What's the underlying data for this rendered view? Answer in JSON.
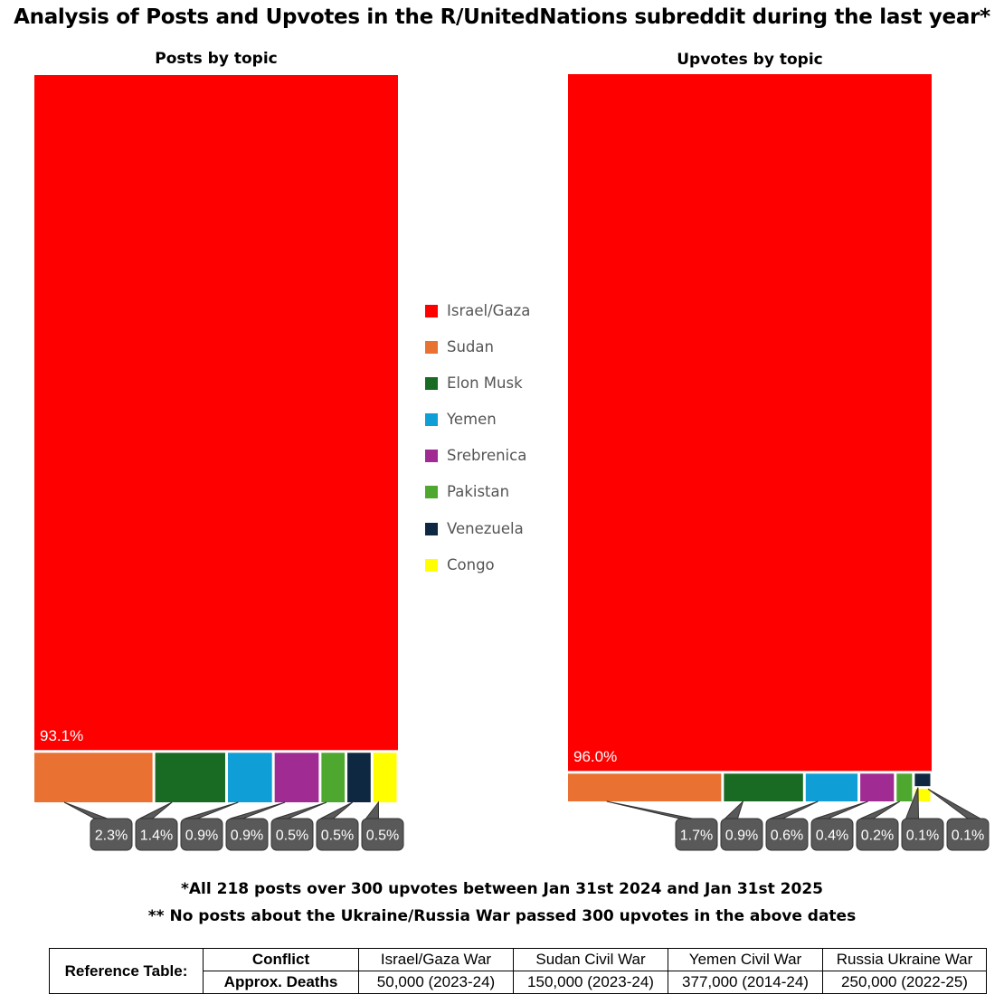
{
  "title": "Analysis of Posts and Upvotes in the R/UnitedNations subreddit during the last year*",
  "legend": [
    {
      "label": "Israel/Gaza",
      "color": "#ff0000"
    },
    {
      "label": "Sudan",
      "color": "#e97132"
    },
    {
      "label": "Elon Musk",
      "color": "#196b24"
    },
    {
      "label": "Yemen",
      "color": "#0f9ed5"
    },
    {
      "label": "Srebrenica",
      "color": "#a02b93"
    },
    {
      "label": "Pakistan",
      "color": "#4ea72e"
    },
    {
      "label": "Venezuela",
      "color": "#0e2841"
    },
    {
      "label": "Congo",
      "color": "#ffff00"
    }
  ],
  "chart_data": [
    {
      "type": "treemap",
      "title": "Posts by topic",
      "categories": [
        "Israel/Gaza",
        "Sudan",
        "Elon Musk",
        "Yemen",
        "Srebrenica",
        "Pakistan",
        "Venezuela",
        "Congo"
      ],
      "values": [
        93.1,
        2.3,
        1.4,
        0.9,
        0.9,
        0.5,
        0.5,
        0.5
      ],
      "labels": [
        "93.1%",
        "2.3%",
        "1.4%",
        "0.9%",
        "0.9%",
        "0.5%",
        "0.5%",
        "0.5%"
      ]
    },
    {
      "type": "treemap",
      "title": "Upvotes by topic",
      "categories": [
        "Israel/Gaza",
        "Sudan",
        "Elon Musk",
        "Yemen",
        "Srebrenica",
        "Pakistan",
        "Venezuela",
        "Congo"
      ],
      "values": [
        96.0,
        1.7,
        0.9,
        0.6,
        0.4,
        0.2,
        0.1,
        0.1
      ],
      "labels": [
        "96.0%",
        "1.7%",
        "0.9%",
        "0.6%",
        "0.4%",
        "0.2%",
        "0.1%",
        "0.1%"
      ]
    }
  ],
  "footnotes": [
    "*All 218 posts over 300 upvotes between Jan 31st 2024 and Jan 31st 2025",
    "** No posts about the Ukraine/Russia War passed 300 upvotes in the above dates"
  ],
  "reference_table": {
    "label": "Reference Table:",
    "row_headers": [
      "Conflict",
      "Approx. Deaths"
    ],
    "conflicts": [
      "Israel/Gaza War",
      "Sudan Civil War",
      "Yemen Civil War",
      "Russia Ukraine War"
    ],
    "deaths": [
      "50,000 (2023-24)",
      "150,000 (2023-24)",
      "377,000 (2014-24)",
      "250,000 (2022-25)"
    ]
  }
}
